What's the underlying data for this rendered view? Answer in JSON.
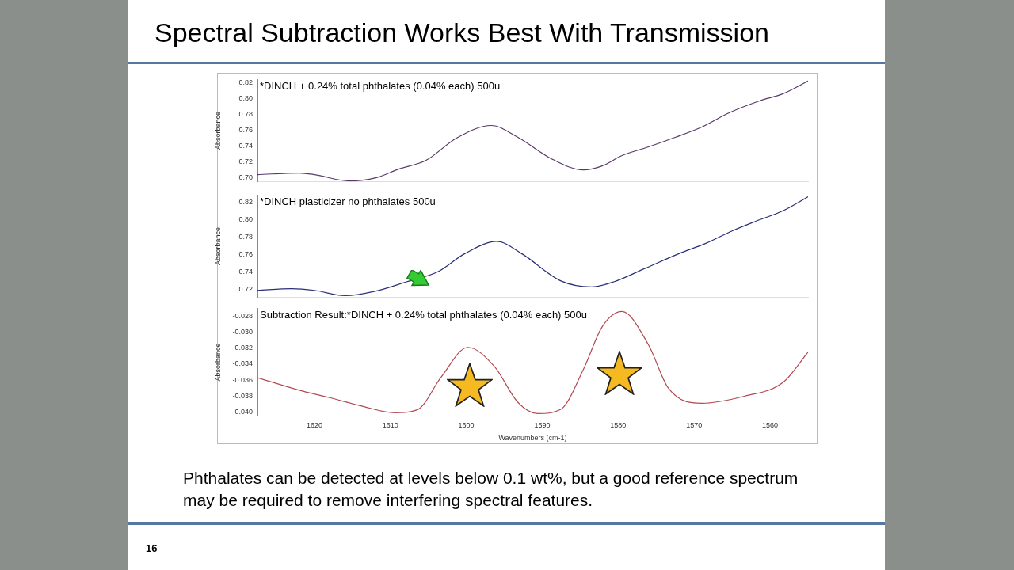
{
  "chart_data": [
    {
      "type": "line",
      "title": "Spectral Subtraction Works Best With Transmission",
      "ylabel": "Absorbance",
      "xlim": [
        1627.5,
        1555
      ],
      "ylim": [
        0.695,
        0.824
      ],
      "yticks": [
        {
          "value": 0.7,
          "label": "0.70"
        },
        {
          "value": 0.72,
          "label": "0.72"
        },
        {
          "value": 0.74,
          "label": "0.74"
        },
        {
          "value": 0.76,
          "label": "0.76"
        },
        {
          "value": 0.78,
          "label": "0.78"
        },
        {
          "value": 0.8,
          "label": "0.80"
        },
        {
          "value": 0.82,
          "label": "0.82"
        }
      ],
      "tick_labels": "y",
      "legend": false,
      "grid": false,
      "series": [
        {
          "name": "*DINCH + 0.24% total phthalates (0.04% each) 500u",
          "color": "#5a3a6a",
          "x": [
            1627.5,
            1622,
            1620,
            1615.4,
            1611.9,
            1608.9,
            1605.3,
            1601.3,
            1596.7,
            1593.2,
            1588.6,
            1584.6,
            1582.1,
            1579.5,
            1576,
            1572.5,
            1569,
            1565.4,
            1561.4,
            1558.3,
            1555
          ],
          "values": [
            0.704,
            0.706,
            0.704,
            0.696,
            0.7,
            0.711,
            0.722,
            0.75,
            0.766,
            0.751,
            0.723,
            0.71,
            0.715,
            0.728,
            0.739,
            0.751,
            0.764,
            0.782,
            0.797,
            0.806,
            0.822
          ]
        }
      ]
    },
    {
      "type": "line",
      "ylabel": "Absorbance",
      "xlim": [
        1627.5,
        1555
      ],
      "ylim": [
        0.711,
        0.828
      ],
      "yticks": [
        {
          "value": 0.72,
          "label": "0.72"
        },
        {
          "value": 0.74,
          "label": "0.74"
        },
        {
          "value": 0.76,
          "label": "0.76"
        },
        {
          "value": 0.78,
          "label": "0.78"
        },
        {
          "value": 0.8,
          "label": "0.80"
        },
        {
          "value": 0.82,
          "label": "0.82"
        }
      ],
      "tick_labels": "y",
      "legend": false,
      "grid": false,
      "series": [
        {
          "name": "*DINCH plasticizer no phthalates 500u",
          "color": "#2a2f7a",
          "x": [
            1627.5,
            1623,
            1620,
            1616,
            1612,
            1607.8,
            1603.8,
            1600.2,
            1596,
            1592.7,
            1587.6,
            1583.5,
            1580.5,
            1576.5,
            1572,
            1568.4,
            1565,
            1561.9,
            1558.3,
            1555
          ],
          "values": [
            0.719,
            0.721,
            0.719,
            0.713,
            0.718,
            0.729,
            0.74,
            0.761,
            0.775,
            0.761,
            0.73,
            0.723,
            0.729,
            0.744,
            0.761,
            0.773,
            0.787,
            0.798,
            0.81,
            0.826
          ]
        }
      ]
    },
    {
      "type": "line",
      "xlabel": "Wavenumbers (cm-1)",
      "ylabel": "Absorbance",
      "xlim": [
        1627.5,
        1555
      ],
      "xticks": [
        1620,
        1610,
        1600,
        1590,
        1580,
        1570,
        1560
      ],
      "ylim": [
        -0.0405,
        -0.027
      ],
      "yticks": [
        {
          "value": -0.04,
          "label": "-0.040"
        },
        {
          "value": -0.038,
          "label": "-0.038"
        },
        {
          "value": -0.036,
          "label": "-0.036"
        },
        {
          "value": -0.034,
          "label": "-0.034"
        },
        {
          "value": -0.032,
          "label": "-0.032"
        },
        {
          "value": -0.03,
          "label": "-0.030"
        },
        {
          "value": -0.028,
          "label": "-0.028"
        }
      ],
      "legend": false,
      "grid": false,
      "annotations": [
        "Phthalates can be detected at levels below 0.1 wt%, but a good reference spectrum may be required to remove interfering spectral features.",
        "16"
      ],
      "series": [
        {
          "name": "Subtraction Result:*DINCH + 0.24% total phthalates (0.04% each) 500u",
          "color": "#b04a50",
          "x": [
            1627.5,
            1621.5,
            1618,
            1614,
            1609.4,
            1606.4,
            1603.3,
            1599.8,
            1596.3,
            1593.2,
            1590.6,
            1587.6,
            1584.6,
            1582.1,
            1579.5,
            1576,
            1573.4,
            1569,
            1563.3,
            1558.3,
            1555
          ],
          "values": [
            -0.0357,
            -0.0374,
            -0.0382,
            -0.0392,
            -0.0401,
            -0.0397,
            -0.0356,
            -0.0319,
            -0.0343,
            -0.0388,
            -0.0402,
            -0.0397,
            -0.0347,
            -0.0293,
            -0.0274,
            -0.0316,
            -0.037,
            -0.0389,
            -0.038,
            -0.0363,
            -0.0325
          ]
        }
      ]
    }
  ]
}
